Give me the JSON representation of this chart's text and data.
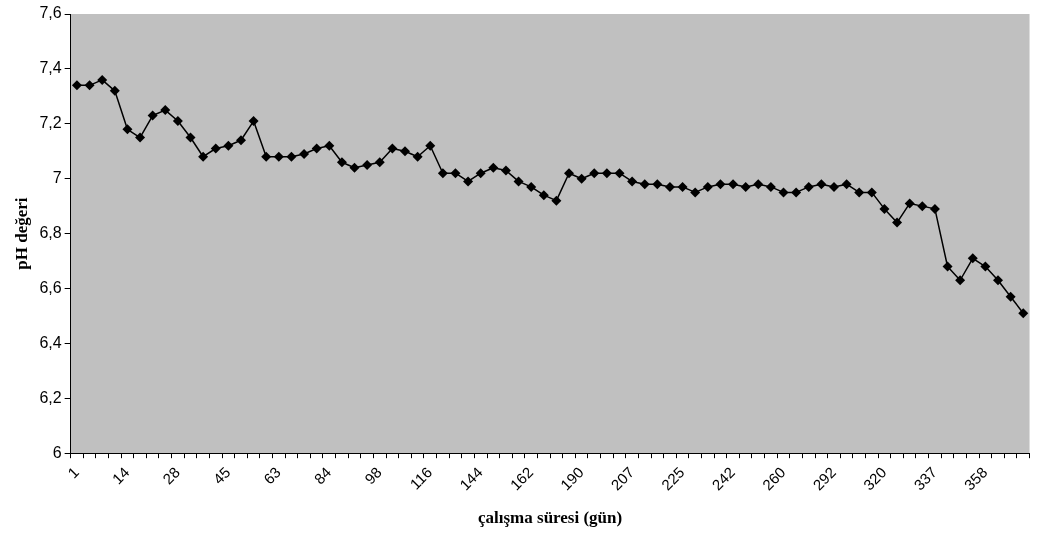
{
  "chart_data": {
    "type": "line",
    "xlabel": "çalışma süresi (gün)",
    "ylabel": "pH değeri",
    "categories": [
      "1",
      null,
      null,
      null,
      "14",
      null,
      null,
      null,
      "28",
      null,
      null,
      null,
      "45",
      null,
      null,
      null,
      "63",
      null,
      null,
      null,
      "84",
      null,
      null,
      null,
      "98",
      null,
      null,
      null,
      "116",
      null,
      null,
      null,
      "144",
      null,
      null,
      null,
      "162",
      null,
      null,
      null,
      "190",
      null,
      null,
      null,
      "207",
      null,
      null,
      null,
      "225",
      null,
      null,
      null,
      "242",
      null,
      null,
      null,
      "260",
      null,
      null,
      null,
      "292",
      null,
      null,
      null,
      "320",
      null,
      null,
      null,
      "337",
      null,
      null,
      null,
      "358",
      null,
      null,
      null
    ],
    "series": [
      {
        "color": "#000000",
        "values": [
          7.34,
          7.34,
          7.36,
          7.32,
          7.18,
          7.15,
          7.23,
          7.25,
          7.21,
          7.15,
          7.08,
          7.11,
          7.12,
          7.14,
          7.21,
          7.08,
          7.08,
          7.08,
          7.09,
          7.11,
          7.12,
          7.06,
          7.04,
          7.05,
          7.06,
          7.11,
          7.1,
          7.08,
          7.12,
          7.02,
          7.02,
          6.99,
          7.02,
          7.04,
          7.03,
          6.99,
          6.97,
          6.94,
          6.92,
          7.02,
          7.0,
          7.02,
          7.02,
          7.02,
          6.99,
          6.98,
          6.98,
          6.97,
          6.97,
          6.95,
          6.97,
          6.98,
          6.98,
          6.97,
          6.98,
          6.97,
          6.95,
          6.95,
          6.97,
          6.98,
          6.97,
          6.98,
          6.95,
          6.95,
          6.89,
          6.84,
          6.91,
          6.9,
          6.89,
          6.68,
          6.63,
          6.71,
          6.68,
          6.63,
          6.57,
          6.51
        ]
      }
    ],
    "ylim": [
      6,
      7.6
    ],
    "yticks": [
      {
        "value": 6,
        "label": "6"
      },
      {
        "value": 6.2,
        "label": "6,2"
      },
      {
        "value": 6.4,
        "label": "6,4"
      },
      {
        "value": 6.6,
        "label": "6,6"
      },
      {
        "value": 6.8,
        "label": "6,8"
      },
      {
        "value": 7,
        "label": "7"
      },
      {
        "value": 7.2,
        "label": "7,2"
      },
      {
        "value": 7.4,
        "label": "7,4"
      },
      {
        "value": 7.6,
        "label": "7,6"
      }
    ],
    "grid": false,
    "legend": false,
    "marker": "diamond",
    "line_style": "solid"
  }
}
